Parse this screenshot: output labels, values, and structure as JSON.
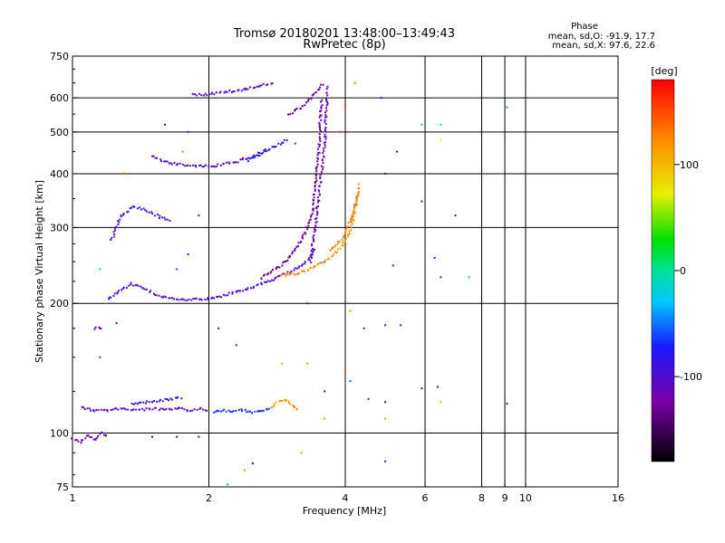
{
  "chart_data": {
    "type": "scatter",
    "title": "Tromsø 20180201 13:48:00–13:49:43",
    "subtitle": "RwPretec (8p)",
    "xlabel": "Frequency [MHz]",
    "ylabel": "Stationary phase Virtual Height [km]",
    "x_scale": "log",
    "y_scale": "log",
    "xlim": [
      1,
      16
    ],
    "ylim": [
      75,
      750
    ],
    "x_ticks": [
      1,
      2,
      4,
      6,
      8,
      9,
      10,
      16
    ],
    "x_tick_labels": [
      "1",
      "2",
      "4",
      "6",
      "8",
      "9",
      "10",
      "16"
    ],
    "y_ticks": [
      75,
      100,
      200,
      300,
      400,
      500,
      600,
      750
    ],
    "y_tick_labels": [
      "75",
      "100",
      "200",
      "300",
      "400",
      "500",
      "600",
      "750"
    ],
    "grid": true,
    "stats": {
      "title": "Phase",
      "o_line": "mean, sd,O: -91.9, 17.7",
      "x_line": "mean, sd,X:  97.6, 22.6"
    },
    "colorbar": {
      "label": "[deg]",
      "range": [
        -180,
        180
      ],
      "ticks": [
        100,
        0,
        -100
      ],
      "tick_labels": [
        "100",
        "0",
        "-100"
      ]
    },
    "traces": [
      {
        "kind": "curve",
        "phase": -105,
        "x": [
          1.05,
          1.1,
          1.2,
          1.3,
          1.4,
          1.5,
          1.6,
          1.7,
          1.8,
          1.9,
          2.0
        ],
        "y": [
          115,
          113,
          113,
          114,
          113,
          114,
          113,
          114,
          113,
          114,
          113
        ]
      },
      {
        "kind": "curve",
        "phase": -110,
        "x": [
          1.0,
          1.04,
          1.08,
          1.12,
          1.16,
          1.2
        ],
        "y": [
          97,
          95,
          99,
          96,
          100,
          98
        ]
      },
      {
        "kind": "curve",
        "phase": -100,
        "x": [
          1.2,
          1.28,
          1.35,
          1.45,
          1.55,
          1.7,
          1.9,
          2.1,
          2.4,
          2.7,
          2.9,
          3.1,
          3.3,
          3.45
        ],
        "y": [
          205,
          215,
          222,
          216,
          208,
          204,
          204,
          207,
          215,
          225,
          232,
          240,
          252,
          270
        ]
      },
      {
        "kind": "curve",
        "phase": -95,
        "x": [
          1.22,
          1.28,
          1.36,
          1.45,
          1.55,
          1.65
        ],
        "y": [
          280,
          320,
          335,
          330,
          318,
          310
        ]
      },
      {
        "kind": "curve",
        "phase": -102,
        "x": [
          1.5,
          1.6,
          1.75,
          1.9,
          2.1,
          2.3,
          2.5,
          2.7
        ],
        "y": [
          440,
          425,
          420,
          417,
          418,
          426,
          440,
          455
        ]
      },
      {
        "kind": "curve",
        "phase": -80,
        "x": [
          2.45,
          2.6,
          2.75,
          2.9,
          3.0
        ],
        "y": [
          430,
          445,
          460,
          470,
          485
        ]
      },
      {
        "kind": "curve",
        "phase": -105,
        "x": [
          1.85,
          2.0,
          2.2,
          2.45,
          2.65,
          2.8
        ],
        "y": [
          610,
          612,
          620,
          630,
          645,
          650
        ]
      },
      {
        "kind": "curve",
        "phase": -125,
        "x": [
          2.6,
          2.85,
          3.05,
          3.2,
          3.3,
          3.38,
          3.42,
          3.45,
          3.5,
          3.52,
          3.55
        ],
        "y": [
          228,
          242,
          260,
          280,
          300,
          320,
          360,
          400,
          450,
          520,
          600
        ]
      },
      {
        "kind": "curve",
        "phase": -115,
        "x": [
          3.35,
          3.4,
          3.45,
          3.5,
          3.55,
          3.6,
          3.62,
          3.64,
          3.66
        ],
        "y": [
          250,
          280,
          310,
          360,
          410,
          460,
          520,
          580,
          640
        ]
      },
      {
        "kind": "curve",
        "phase": 118,
        "x": [
          2.9,
          3.1,
          3.3,
          3.5,
          3.7,
          3.9,
          4.05,
          4.15,
          4.25
        ],
        "y": [
          232,
          234,
          238,
          246,
          255,
          268,
          285,
          310,
          360
        ]
      },
      {
        "kind": "curve",
        "phase": 130,
        "x": [
          3.7,
          3.9,
          4.05,
          4.2,
          4.3
        ],
        "y": [
          265,
          280,
          300,
          330,
          380
        ]
      },
      {
        "kind": "curve",
        "phase": -95,
        "x": [
          1.35,
          1.45,
          1.55,
          1.65,
          1.75
        ],
        "y": [
          117,
          118,
          119,
          120,
          121
        ]
      },
      {
        "kind": "curve",
        "phase": -70,
        "x": [
          2.05,
          2.15,
          2.25,
          2.35,
          2.5,
          2.65,
          2.75
        ],
        "y": [
          112,
          113,
          112,
          113,
          112,
          113,
          115
        ]
      },
      {
        "kind": "curve",
        "phase": 120,
        "x": [
          2.75,
          2.85,
          2.95,
          3.05,
          3.15
        ],
        "y": [
          115,
          118,
          120,
          116,
          113
        ]
      },
      {
        "kind": "curve",
        "phase": -110,
        "x": [
          1.12,
          1.14,
          1.17
        ],
        "y": [
          175,
          176,
          175
        ]
      },
      {
        "kind": "curve",
        "phase": -130,
        "x": [
          3.0,
          3.2,
          3.3,
          3.4,
          3.5,
          3.6
        ],
        "y": [
          550,
          570,
          590,
          610,
          630,
          650
        ]
      }
    ],
    "points": [
      {
        "x": 5.9,
        "y": 520,
        "phase": -30
      },
      {
        "x": 6.5,
        "y": 520,
        "phase": -10
      },
      {
        "x": 9.1,
        "y": 570,
        "phase": -40
      },
      {
        "x": 6.5,
        "y": 480,
        "phase": 70
      },
      {
        "x": 5.9,
        "y": 345,
        "phase": -100
      },
      {
        "x": 7.0,
        "y": 320,
        "phase": -100
      },
      {
        "x": 6.3,
        "y": 255,
        "phase": -90
      },
      {
        "x": 7.5,
        "y": 230,
        "phase": -30
      },
      {
        "x": 6.5,
        "y": 230,
        "phase": -90
      },
      {
        "x": 5.1,
        "y": 245,
        "phase": -110
      },
      {
        "x": 4.9,
        "y": 400,
        "phase": -100
      },
      {
        "x": 4.8,
        "y": 600,
        "phase": -110
      },
      {
        "x": 5.2,
        "y": 450,
        "phase": -120
      },
      {
        "x": 4.2,
        "y": 650,
        "phase": 130
      },
      {
        "x": 4.0,
        "y": 570,
        "phase": 150
      },
      {
        "x": 3.9,
        "y": 500,
        "phase": 160
      },
      {
        "x": 4.1,
        "y": 192,
        "phase": 120
      },
      {
        "x": 4.4,
        "y": 175,
        "phase": -100
      },
      {
        "x": 4.9,
        "y": 178,
        "phase": -110
      },
      {
        "x": 5.3,
        "y": 178,
        "phase": -90
      },
      {
        "x": 4.0,
        "y": 140,
        "phase": 140
      },
      {
        "x": 4.1,
        "y": 132,
        "phase": -60
      },
      {
        "x": 4.5,
        "y": 120,
        "phase": -120
      },
      {
        "x": 4.9,
        "y": 118,
        "phase": -140
      },
      {
        "x": 5.9,
        "y": 127,
        "phase": -100
      },
      {
        "x": 6.4,
        "y": 128,
        "phase": -100
      },
      {
        "x": 6.5,
        "y": 118,
        "phase": 100
      },
      {
        "x": 9.1,
        "y": 117,
        "phase": -100
      },
      {
        "x": 4.9,
        "y": 108,
        "phase": 110
      },
      {
        "x": 3.6,
        "y": 108,
        "phase": 120
      },
      {
        "x": 3.2,
        "y": 90,
        "phase": 110
      },
      {
        "x": 2.5,
        "y": 85,
        "phase": -90
      },
      {
        "x": 2.4,
        "y": 82,
        "phase": 120
      },
      {
        "x": 4.9,
        "y": 86,
        "phase": -100
      },
      {
        "x": 2.1,
        "y": 175,
        "phase": -100
      },
      {
        "x": 2.3,
        "y": 160,
        "phase": -90
      },
      {
        "x": 2.9,
        "y": 145,
        "phase": 110
      },
      {
        "x": 3.3,
        "y": 145,
        "phase": 110
      },
      {
        "x": 3.6,
        "y": 125,
        "phase": -110
      },
      {
        "x": 1.8,
        "y": 500,
        "phase": -90
      },
      {
        "x": 1.6,
        "y": 520,
        "phase": -110
      },
      {
        "x": 1.75,
        "y": 450,
        "phase": 130
      },
      {
        "x": 1.9,
        "y": 320,
        "phase": -100
      },
      {
        "x": 1.8,
        "y": 260,
        "phase": -100
      },
      {
        "x": 1.7,
        "y": 240,
        "phase": -60
      },
      {
        "x": 1.3,
        "y": 400,
        "phase": 150
      },
      {
        "x": 1.15,
        "y": 240,
        "phase": -30
      },
      {
        "x": 1.25,
        "y": 180,
        "phase": -110
      },
      {
        "x": 1.15,
        "y": 150,
        "phase": -60
      },
      {
        "x": 1.5,
        "y": 98,
        "phase": -100
      },
      {
        "x": 1.7,
        "y": 98,
        "phase": -130
      },
      {
        "x": 1.9,
        "y": 98,
        "phase": -110
      },
      {
        "x": 2.2,
        "y": 76,
        "phase": -40
      },
      {
        "x": 3.1,
        "y": 470,
        "phase": -60
      },
      {
        "x": 3.6,
        "y": 250,
        "phase": -40
      },
      {
        "x": 3.3,
        "y": 200,
        "phase": -110
      }
    ]
  }
}
